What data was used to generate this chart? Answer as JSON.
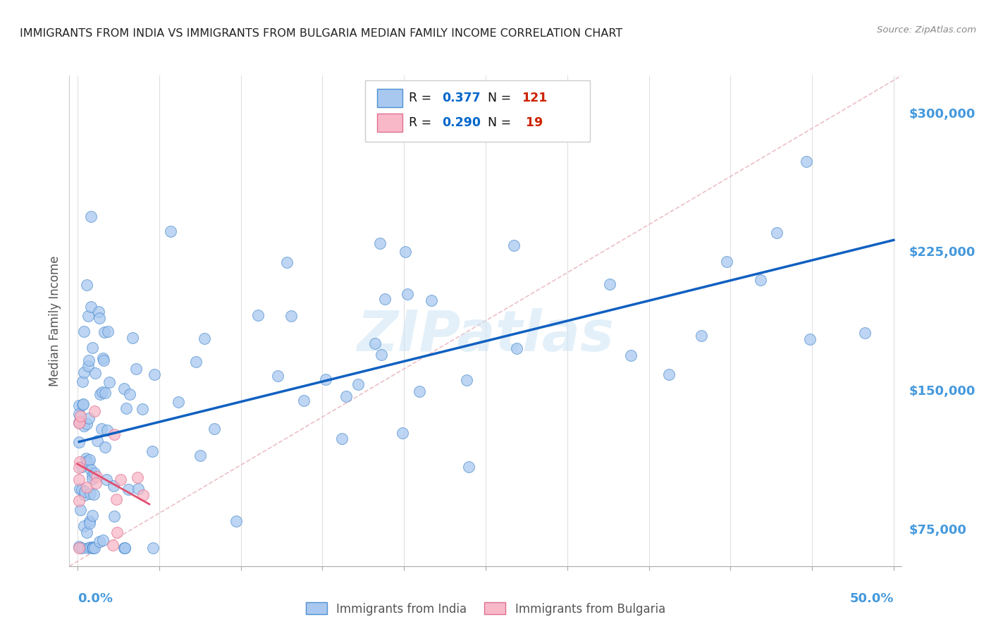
{
  "title": "IMMIGRANTS FROM INDIA VS IMMIGRANTS FROM BULGARIA MEDIAN FAMILY INCOME CORRELATION CHART",
  "source": "Source: ZipAtlas.com",
  "ylabel": "Median Family Income",
  "xlim": [
    -0.005,
    0.505
  ],
  "ylim": [
    55000,
    320000
  ],
  "yticks": [
    75000,
    150000,
    225000,
    300000
  ],
  "ytick_labels": [
    "$75,000",
    "$150,000",
    "$225,000",
    "$300,000"
  ],
  "india_color": "#a8c8f0",
  "india_edge_color": "#5090d0",
  "india_line_color": "#1060c0",
  "bulgaria_color": "#f8b8c8",
  "bulgaria_edge_color": "#e07090",
  "bulgaria_line_color": "#e05070",
  "india_R": 0.377,
  "india_N": 121,
  "bulgaria_R": 0.29,
  "bulgaria_N": 19,
  "watermark": "ZIPatlas",
  "background_color": "#ffffff",
  "grid_color": "#e0e0e0",
  "title_color": "#222222",
  "axis_label_color": "#4499dd",
  "legend_text_color": "#111111",
  "r_value_color": "#0066cc",
  "n_value_color": "#cc2200"
}
